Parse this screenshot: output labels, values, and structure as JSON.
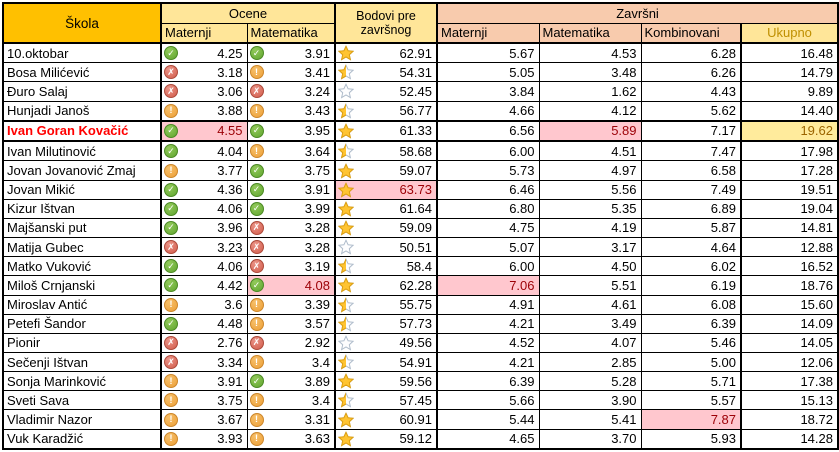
{
  "colors": {
    "gold": "#FFC000",
    "lightgold": "#FFE699",
    "salmon": "#F8CBAD",
    "bad-bg": "#FFC7CE",
    "bad-text": "#9C0006",
    "neutral-bg": "#FFEB9C",
    "neutral-text": "#9C6500",
    "alert-text": "#FF0000",
    "ukupno-text": "#BF8F00",
    "border": "#000000",
    "star-gold": "#FFC432",
    "star-empty-stroke": "#AFBCCB"
  },
  "icon_glyphs": {
    "green-check": "✓",
    "red-x": "✗",
    "amber-exclamation": "!"
  },
  "header": {
    "skola": "Škola",
    "ocene": "Ocene",
    "ocene_maternji": "Maternji",
    "ocene_matematika": "Matematika",
    "bodovi": "Bodovi pre završnog",
    "zavrsni": "Završni",
    "zavrsni_maternji": "Maternji",
    "zavrsni_matematika": "Matematika",
    "kombinovani": "Kombinovani",
    "ukupno": "Ukupno"
  },
  "rows": [
    {
      "school": "10.oktobar",
      "school_alert": false,
      "thick_border": false,
      "ocena_maternji": {
        "icon": "green-check",
        "value": "4.25",
        "highlight": ""
      },
      "ocena_matematika": {
        "icon": "green-check",
        "value": "3.91",
        "highlight": ""
      },
      "bodovi": {
        "star": "full",
        "value": "62.91",
        "highlight": ""
      },
      "zavrsni_maternji": {
        "value": "5.67",
        "highlight": ""
      },
      "zavrsni_matematika": {
        "value": "4.53",
        "highlight": ""
      },
      "kombinovani": {
        "value": "6.28",
        "highlight": ""
      },
      "ukupno": {
        "value": "16.48",
        "highlight": ""
      }
    },
    {
      "school": "Bosa Milićević",
      "school_alert": false,
      "thick_border": false,
      "ocena_maternji": {
        "icon": "red-x",
        "value": "3.18",
        "highlight": ""
      },
      "ocena_matematika": {
        "icon": "amber-exclamation",
        "value": "3.41",
        "highlight": ""
      },
      "bodovi": {
        "star": "half",
        "value": "54.31",
        "highlight": ""
      },
      "zavrsni_maternji": {
        "value": "5.05",
        "highlight": ""
      },
      "zavrsni_matematika": {
        "value": "3.48",
        "highlight": ""
      },
      "kombinovani": {
        "value": "6.26",
        "highlight": ""
      },
      "ukupno": {
        "value": "14.79",
        "highlight": ""
      }
    },
    {
      "school": "Đuro Salaj",
      "school_alert": false,
      "thick_border": false,
      "ocena_maternji": {
        "icon": "red-x",
        "value": "3.06",
        "highlight": ""
      },
      "ocena_matematika": {
        "icon": "red-x",
        "value": "3.24",
        "highlight": ""
      },
      "bodovi": {
        "star": "empty",
        "value": "52.45",
        "highlight": ""
      },
      "zavrsni_maternji": {
        "value": "3.84",
        "highlight": ""
      },
      "zavrsni_matematika": {
        "value": "1.62",
        "highlight": ""
      },
      "kombinovani": {
        "value": "4.43",
        "highlight": ""
      },
      "ukupno": {
        "value": "9.89",
        "highlight": ""
      }
    },
    {
      "school": "Hunjadi Janoš",
      "school_alert": false,
      "thick_border": false,
      "ocena_maternji": {
        "icon": "amber-exclamation",
        "value": "3.88",
        "highlight": ""
      },
      "ocena_matematika": {
        "icon": "amber-exclamation",
        "value": "3.43",
        "highlight": ""
      },
      "bodovi": {
        "star": "half",
        "value": "56.77",
        "highlight": ""
      },
      "zavrsni_maternji": {
        "value": "4.66",
        "highlight": ""
      },
      "zavrsni_matematika": {
        "value": "4.12",
        "highlight": ""
      },
      "kombinovani": {
        "value": "5.62",
        "highlight": ""
      },
      "ukupno": {
        "value": "14.40",
        "highlight": ""
      }
    },
    {
      "school": "Ivan Goran Kovačić",
      "school_alert": true,
      "thick_border": true,
      "ocena_maternji": {
        "icon": "green-check",
        "value": "4.55",
        "highlight": "bad"
      },
      "ocena_matematika": {
        "icon": "green-check",
        "value": "3.95",
        "highlight": ""
      },
      "bodovi": {
        "star": "full",
        "value": "61.33",
        "highlight": ""
      },
      "zavrsni_maternji": {
        "value": "6.56",
        "highlight": ""
      },
      "zavrsni_matematika": {
        "value": "5.89",
        "highlight": "bad"
      },
      "kombinovani": {
        "value": "7.17",
        "highlight": ""
      },
      "ukupno": {
        "value": "19.62",
        "highlight": "neutral"
      }
    },
    {
      "school": "Ivan Milutinović",
      "school_alert": false,
      "thick_border": false,
      "ocena_maternji": {
        "icon": "green-check",
        "value": "4.04",
        "highlight": ""
      },
      "ocena_matematika": {
        "icon": "amber-exclamation",
        "value": "3.64",
        "highlight": ""
      },
      "bodovi": {
        "star": "half",
        "value": "58.68",
        "highlight": ""
      },
      "zavrsni_maternji": {
        "value": "6.00",
        "highlight": ""
      },
      "zavrsni_matematika": {
        "value": "4.51",
        "highlight": ""
      },
      "kombinovani": {
        "value": "7.47",
        "highlight": ""
      },
      "ukupno": {
        "value": "17.98",
        "highlight": ""
      }
    },
    {
      "school": "Jovan Jovanović Zmaj",
      "school_alert": false,
      "thick_border": false,
      "ocena_maternji": {
        "icon": "amber-exclamation",
        "value": "3.77",
        "highlight": ""
      },
      "ocena_matematika": {
        "icon": "green-check",
        "value": "3.75",
        "highlight": ""
      },
      "bodovi": {
        "star": "full",
        "value": "59.07",
        "highlight": ""
      },
      "zavrsni_maternji": {
        "value": "5.73",
        "highlight": ""
      },
      "zavrsni_matematika": {
        "value": "4.97",
        "highlight": ""
      },
      "kombinovani": {
        "value": "6.58",
        "highlight": ""
      },
      "ukupno": {
        "value": "17.28",
        "highlight": ""
      }
    },
    {
      "school": "Jovan Mikić",
      "school_alert": false,
      "thick_border": false,
      "ocena_maternji": {
        "icon": "green-check",
        "value": "4.36",
        "highlight": ""
      },
      "ocena_matematika": {
        "icon": "green-check",
        "value": "3.91",
        "highlight": ""
      },
      "bodovi": {
        "star": "full",
        "value": "63.73",
        "highlight": "bad"
      },
      "zavrsni_maternji": {
        "value": "6.46",
        "highlight": ""
      },
      "zavrsni_matematika": {
        "value": "5.56",
        "highlight": ""
      },
      "kombinovani": {
        "value": "7.49",
        "highlight": ""
      },
      "ukupno": {
        "value": "19.51",
        "highlight": ""
      }
    },
    {
      "school": "Kizur Ištvan",
      "school_alert": false,
      "thick_border": false,
      "ocena_maternji": {
        "icon": "green-check",
        "value": "4.06",
        "highlight": ""
      },
      "ocena_matematika": {
        "icon": "green-check",
        "value": "3.99",
        "highlight": ""
      },
      "bodovi": {
        "star": "full",
        "value": "61.64",
        "highlight": ""
      },
      "zavrsni_maternji": {
        "value": "6.80",
        "highlight": ""
      },
      "zavrsni_matematika": {
        "value": "5.35",
        "highlight": ""
      },
      "kombinovani": {
        "value": "6.89",
        "highlight": ""
      },
      "ukupno": {
        "value": "19.04",
        "highlight": ""
      }
    },
    {
      "school": "Majšanski put",
      "school_alert": false,
      "thick_border": false,
      "ocena_maternji": {
        "icon": "green-check",
        "value": "3.96",
        "highlight": ""
      },
      "ocena_matematika": {
        "icon": "red-x",
        "value": "3.28",
        "highlight": ""
      },
      "bodovi": {
        "star": "full",
        "value": "59.09",
        "highlight": ""
      },
      "zavrsni_maternji": {
        "value": "4.75",
        "highlight": ""
      },
      "zavrsni_matematika": {
        "value": "4.19",
        "highlight": ""
      },
      "kombinovani": {
        "value": "5.87",
        "highlight": ""
      },
      "ukupno": {
        "value": "14.81",
        "highlight": ""
      }
    },
    {
      "school": "Matija Gubec",
      "school_alert": false,
      "thick_border": false,
      "ocena_maternji": {
        "icon": "red-x",
        "value": "3.23",
        "highlight": ""
      },
      "ocena_matematika": {
        "icon": "red-x",
        "value": "3.28",
        "highlight": ""
      },
      "bodovi": {
        "star": "empty",
        "value": "50.51",
        "highlight": ""
      },
      "zavrsni_maternji": {
        "value": "5.07",
        "highlight": ""
      },
      "zavrsni_matematika": {
        "value": "3.17",
        "highlight": ""
      },
      "kombinovani": {
        "value": "4.64",
        "highlight": ""
      },
      "ukupno": {
        "value": "12.88",
        "highlight": ""
      }
    },
    {
      "school": "Matko Vuković",
      "school_alert": false,
      "thick_border": false,
      "ocena_maternji": {
        "icon": "green-check",
        "value": "4.06",
        "highlight": ""
      },
      "ocena_matematika": {
        "icon": "red-x",
        "value": "3.19",
        "highlight": ""
      },
      "bodovi": {
        "star": "half",
        "value": "58.4",
        "highlight": ""
      },
      "zavrsni_maternji": {
        "value": "6.00",
        "highlight": ""
      },
      "zavrsni_matematika": {
        "value": "4.50",
        "highlight": ""
      },
      "kombinovani": {
        "value": "6.02",
        "highlight": ""
      },
      "ukupno": {
        "value": "16.52",
        "highlight": ""
      }
    },
    {
      "school": "Miloš Crnjanski",
      "school_alert": false,
      "thick_border": false,
      "ocena_maternji": {
        "icon": "green-check",
        "value": "4.42",
        "highlight": ""
      },
      "ocena_matematika": {
        "icon": "green-check",
        "value": "4.08",
        "highlight": "bad"
      },
      "bodovi": {
        "star": "full",
        "value": "62.28",
        "highlight": ""
      },
      "zavrsni_maternji": {
        "value": "7.06",
        "highlight": "bad"
      },
      "zavrsni_matematika": {
        "value": "5.51",
        "highlight": ""
      },
      "kombinovani": {
        "value": "6.19",
        "highlight": ""
      },
      "ukupno": {
        "value": "18.76",
        "highlight": ""
      }
    },
    {
      "school": "Miroslav Antić",
      "school_alert": false,
      "thick_border": false,
      "ocena_maternji": {
        "icon": "amber-exclamation",
        "value": "3.6",
        "highlight": ""
      },
      "ocena_matematika": {
        "icon": "amber-exclamation",
        "value": "3.39",
        "highlight": ""
      },
      "bodovi": {
        "star": "half",
        "value": "55.75",
        "highlight": ""
      },
      "zavrsni_maternji": {
        "value": "4.91",
        "highlight": ""
      },
      "zavrsni_matematika": {
        "value": "4.61",
        "highlight": ""
      },
      "kombinovani": {
        "value": "6.08",
        "highlight": ""
      },
      "ukupno": {
        "value": "15.60",
        "highlight": ""
      }
    },
    {
      "school": "Petefi Šandor",
      "school_alert": false,
      "thick_border": false,
      "ocena_maternji": {
        "icon": "green-check",
        "value": "4.48",
        "highlight": ""
      },
      "ocena_matematika": {
        "icon": "amber-exclamation",
        "value": "3.57",
        "highlight": ""
      },
      "bodovi": {
        "star": "half",
        "value": "57.73",
        "highlight": ""
      },
      "zavrsni_maternji": {
        "value": "4.21",
        "highlight": ""
      },
      "zavrsni_matematika": {
        "value": "3.49",
        "highlight": ""
      },
      "kombinovani": {
        "value": "6.39",
        "highlight": ""
      },
      "ukupno": {
        "value": "14.09",
        "highlight": ""
      }
    },
    {
      "school": "Pionir",
      "school_alert": false,
      "thick_border": false,
      "ocena_maternji": {
        "icon": "red-x",
        "value": "2.76",
        "highlight": ""
      },
      "ocena_matematika": {
        "icon": "red-x",
        "value": "2.92",
        "highlight": ""
      },
      "bodovi": {
        "star": "empty",
        "value": "49.56",
        "highlight": ""
      },
      "zavrsni_maternji": {
        "value": "4.52",
        "highlight": ""
      },
      "zavrsni_matematika": {
        "value": "4.07",
        "highlight": ""
      },
      "kombinovani": {
        "value": "5.46",
        "highlight": ""
      },
      "ukupno": {
        "value": "14.05",
        "highlight": ""
      }
    },
    {
      "school": "Sečenji Ištvan",
      "school_alert": false,
      "thick_border": false,
      "ocena_maternji": {
        "icon": "red-x",
        "value": "3.34",
        "highlight": ""
      },
      "ocena_matematika": {
        "icon": "amber-exclamation",
        "value": "3.4",
        "highlight": ""
      },
      "bodovi": {
        "star": "half",
        "value": "54.91",
        "highlight": ""
      },
      "zavrsni_maternji": {
        "value": "4.21",
        "highlight": ""
      },
      "zavrsni_matematika": {
        "value": "2.85",
        "highlight": ""
      },
      "kombinovani": {
        "value": "5.00",
        "highlight": ""
      },
      "ukupno": {
        "value": "12.06",
        "highlight": ""
      }
    },
    {
      "school": "Sonja Marinković",
      "school_alert": false,
      "thick_border": false,
      "ocena_maternji": {
        "icon": "amber-exclamation",
        "value": "3.91",
        "highlight": ""
      },
      "ocena_matematika": {
        "icon": "green-check",
        "value": "3.89",
        "highlight": ""
      },
      "bodovi": {
        "star": "full",
        "value": "59.56",
        "highlight": ""
      },
      "zavrsni_maternji": {
        "value": "6.39",
        "highlight": ""
      },
      "zavrsni_matematika": {
        "value": "5.28",
        "highlight": ""
      },
      "kombinovani": {
        "value": "5.71",
        "highlight": ""
      },
      "ukupno": {
        "value": "17.38",
        "highlight": ""
      }
    },
    {
      "school": "Sveti Sava",
      "school_alert": false,
      "thick_border": false,
      "ocena_maternji": {
        "icon": "amber-exclamation",
        "value": "3.75",
        "highlight": ""
      },
      "ocena_matematika": {
        "icon": "amber-exclamation",
        "value": "3.4",
        "highlight": ""
      },
      "bodovi": {
        "star": "half",
        "value": "57.45",
        "highlight": ""
      },
      "zavrsni_maternji": {
        "value": "5.66",
        "highlight": ""
      },
      "zavrsni_matematika": {
        "value": "3.90",
        "highlight": ""
      },
      "kombinovani": {
        "value": "5.57",
        "highlight": ""
      },
      "ukupno": {
        "value": "15.13",
        "highlight": ""
      }
    },
    {
      "school": "Vladimir Nazor",
      "school_alert": false,
      "thick_border": false,
      "ocena_maternji": {
        "icon": "amber-exclamation",
        "value": "3.67",
        "highlight": ""
      },
      "ocena_matematika": {
        "icon": "amber-exclamation",
        "value": "3.31",
        "highlight": ""
      },
      "bodovi": {
        "star": "full",
        "value": "60.91",
        "highlight": ""
      },
      "zavrsni_maternji": {
        "value": "5.44",
        "highlight": ""
      },
      "zavrsni_matematika": {
        "value": "5.41",
        "highlight": ""
      },
      "kombinovani": {
        "value": "7.87",
        "highlight": "bad"
      },
      "ukupno": {
        "value": "18.72",
        "highlight": ""
      }
    },
    {
      "school": "Vuk Karadžić",
      "school_alert": false,
      "thick_border": false,
      "ocena_maternji": {
        "icon": "amber-exclamation",
        "value": "3.93",
        "highlight": ""
      },
      "ocena_matematika": {
        "icon": "amber-exclamation",
        "value": "3.63",
        "highlight": ""
      },
      "bodovi": {
        "star": "full",
        "value": "59.12",
        "highlight": ""
      },
      "zavrsni_maternji": {
        "value": "4.65",
        "highlight": ""
      },
      "zavrsni_matematika": {
        "value": "3.70",
        "highlight": ""
      },
      "kombinovani": {
        "value": "5.93",
        "highlight": ""
      },
      "ukupno": {
        "value": "14.28",
        "highlight": ""
      }
    }
  ]
}
